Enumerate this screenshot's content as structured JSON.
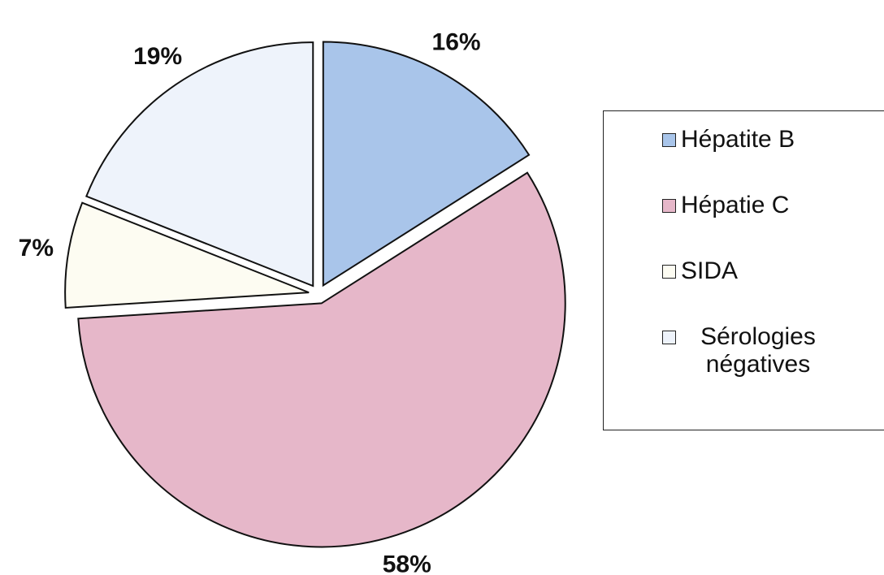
{
  "chart_data": {
    "type": "pie",
    "categories": [
      "Hépatite B",
      "Hépatie C",
      "SIDA",
      "Sérologies négatives"
    ],
    "values": [
      16,
      58,
      7,
      19
    ],
    "value_labels": [
      "16%",
      "58%",
      "7%",
      "19%"
    ],
    "colors": [
      "#a9c5ea",
      "#e6b7c9",
      "#fdfcf2",
      "#eef3fb"
    ]
  }
}
